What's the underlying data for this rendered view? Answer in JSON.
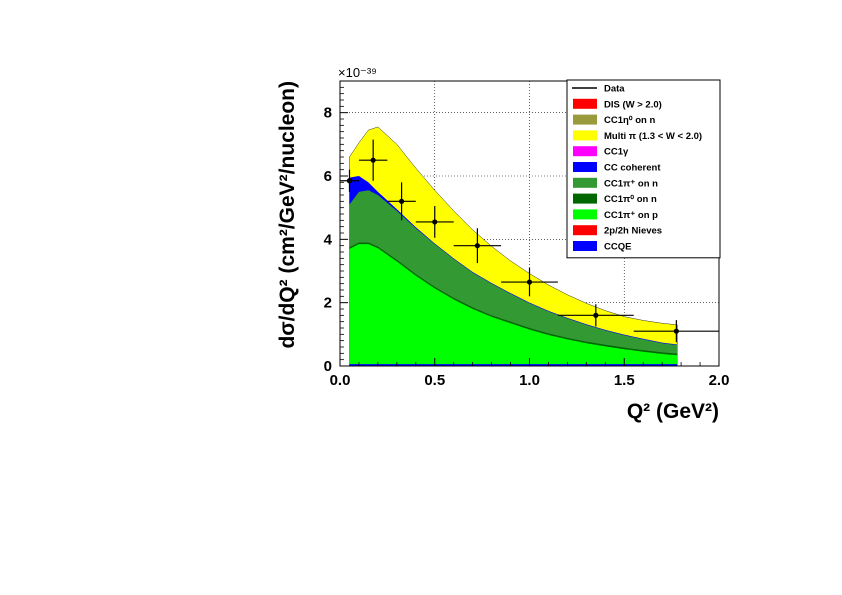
{
  "chart_data": {
    "type": "area",
    "xlabel": "Q² (GeV²)",
    "ylabel": "dσ/dQ² (cm²/GeV²/nucleon)",
    "y_exponent": "×10⁻³⁹",
    "xlim": [
      0,
      2.0
    ],
    "ylim": [
      0,
      9.0
    ],
    "x_ticks": [
      "0.0",
      "0.5",
      "1.0",
      "1.5",
      "2.0"
    ],
    "y_ticks": [
      "0",
      "2",
      "4",
      "6",
      "8"
    ],
    "grid": true,
    "legend_position": "top-right",
    "legend": [
      {
        "label": "Data",
        "kind": "line",
        "color": "#000000"
      },
      {
        "label": "DIS (W > 2.0)",
        "kind": "box",
        "color": "#ff0000"
      },
      {
        "label": "CC1η⁰ on n",
        "kind": "box",
        "color": "#9a9a3c"
      },
      {
        "label": "Multi π (1.3 < W < 2.0)",
        "kind": "box",
        "color": "#ffff00"
      },
      {
        "label": "CC1γ",
        "kind": "box",
        "color": "#ff00ff"
      },
      {
        "label": "CC coherent",
        "kind": "box",
        "color": "#0000ff"
      },
      {
        "label": "CC1π⁺ on n",
        "kind": "box",
        "color": "#339933"
      },
      {
        "label": "CC1π⁰ on n",
        "kind": "box",
        "color": "#006600"
      },
      {
        "label": "CC1π⁺ on p",
        "kind": "box",
        "color": "#00ff00"
      },
      {
        "label": "2p/2h Nieves",
        "kind": "box",
        "color": "#ff0000"
      },
      {
        "label": "CCQE",
        "kind": "box",
        "color": "#0000ff"
      }
    ],
    "x": [
      0.05,
      0.1,
      0.15,
      0.2,
      0.3,
      0.4,
      0.5,
      0.6,
      0.7,
      0.8,
      0.9,
      1.0,
      1.1,
      1.2,
      1.3,
      1.4,
      1.5,
      1.6,
      1.7,
      1.78
    ],
    "stack": [
      {
        "name": "CCQE",
        "color": "#0000ff",
        "values": [
          0.06,
          0.06,
          0.06,
          0.06,
          0.06,
          0.06,
          0.06,
          0.06,
          0.06,
          0.06,
          0.06,
          0.06,
          0.06,
          0.06,
          0.06,
          0.06,
          0.06,
          0.06,
          0.06,
          0.06
        ]
      },
      {
        "name": "CC1π⁺ on p",
        "color": "#00ff00",
        "cumulative": [
          3.7,
          3.85,
          3.85,
          3.72,
          3.3,
          2.85,
          2.45,
          2.1,
          1.8,
          1.55,
          1.35,
          1.15,
          0.98,
          0.84,
          0.72,
          0.62,
          0.53,
          0.45,
          0.38,
          0.34
        ]
      },
      {
        "name": "CC1π⁰ on n",
        "color": "#006600",
        "cumulative": [
          3.75,
          3.9,
          3.9,
          3.77,
          3.35,
          2.9,
          2.5,
          2.15,
          1.85,
          1.6,
          1.4,
          1.2,
          1.03,
          0.89,
          0.77,
          0.67,
          0.58,
          0.5,
          0.43,
          0.39
        ]
      },
      {
        "name": "CC1π⁺ on n",
        "color": "#339933",
        "cumulative": [
          5.1,
          5.5,
          5.55,
          5.4,
          4.9,
          4.35,
          3.85,
          3.38,
          2.95,
          2.6,
          2.28,
          1.98,
          1.72,
          1.5,
          1.3,
          1.12,
          0.97,
          0.84,
          0.72,
          0.66
        ]
      },
      {
        "name": "CC coherent",
        "color": "#0000ff",
        "cumulative": [
          5.95,
          6.0,
          5.8,
          5.5,
          4.95,
          4.38,
          3.87,
          3.4,
          2.97,
          2.62,
          2.3,
          2.0,
          1.74,
          1.52,
          1.32,
          1.14,
          0.99,
          0.86,
          0.74,
          0.68
        ]
      },
      {
        "name": "Multi π (1.3 < W < 2.0)",
        "color": "#ffff00",
        "cumulative": [
          6.6,
          7.05,
          7.45,
          7.55,
          7.0,
          6.25,
          5.55,
          4.9,
          4.3,
          3.78,
          3.32,
          2.92,
          2.56,
          2.25,
          1.98,
          1.75,
          1.56,
          1.44,
          1.35,
          1.3
        ]
      }
    ],
    "data_points": {
      "x": [
        0.05,
        0.175,
        0.325,
        0.5,
        0.725,
        1.0,
        1.35,
        1.775
      ],
      "x_err": [
        0.05,
        0.075,
        0.075,
        0.1,
        0.125,
        0.15,
        0.2,
        0.225
      ],
      "y": [
        5.85,
        6.5,
        5.2,
        4.55,
        3.8,
        2.65,
        1.6,
        1.1
      ],
      "y_err": [
        0.35,
        0.65,
        0.6,
        0.5,
        0.55,
        0.45,
        0.35,
        0.35
      ]
    }
  }
}
